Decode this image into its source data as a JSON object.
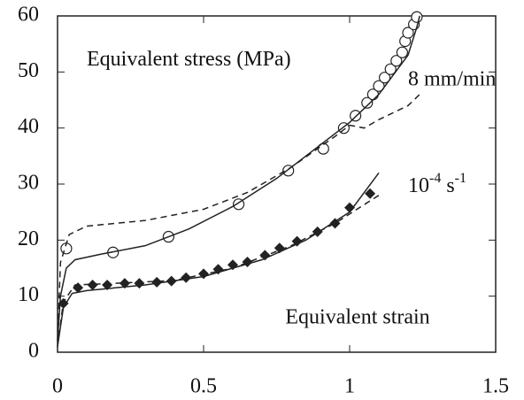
{
  "chart_data": {
    "type": "line",
    "annotations": [
      {
        "text": "Equivalent stress (MPa)",
        "x": 0.1,
        "y": 52
      },
      {
        "text": "8 mm/min",
        "x": 1.2,
        "y": 48.5
      },
      {
        "parts": [
          "10",
          "-4",
          " s",
          "-1"
        ],
        "x": 1.2,
        "y": 29.5
      },
      {
        "text": "Equivalent strain",
        "x": 0.78,
        "y": 6
      }
    ],
    "xlim": [
      0,
      1.5
    ],
    "xticks": [
      0,
      0.5,
      1,
      1.5
    ],
    "ylim": [
      0,
      60
    ],
    "yticks": [
      0,
      10,
      20,
      30,
      40,
      50,
      60
    ],
    "series": [
      {
        "style": "open-circle",
        "color": "#222222",
        "x": [
          0.03,
          0.19,
          0.38,
          0.62,
          0.79,
          0.91,
          0.98,
          1.02,
          1.06,
          1.08,
          1.1,
          1.12,
          1.14,
          1.16,
          1.18,
          1.19,
          1.2,
          1.22,
          1.23
        ],
        "values": [
          18.5,
          17.8,
          20.6,
          26.4,
          32.4,
          36.3,
          40,
          42.2,
          44.5,
          46,
          47.5,
          49,
          50.5,
          52,
          53.5,
          55.5,
          57,
          58.5,
          59.8
        ]
      },
      {
        "style": "filled-diamond",
        "color": "#222222",
        "x": [
          0.02,
          0.07,
          0.12,
          0.17,
          0.23,
          0.28,
          0.34,
          0.39,
          0.44,
          0.5,
          0.55,
          0.6,
          0.65,
          0.71,
          0.76,
          0.82,
          0.89,
          0.95,
          1.0,
          1.07
        ],
        "values": [
          8.7,
          11.5,
          12,
          12,
          12.3,
          12.3,
          12.5,
          12.7,
          13.3,
          14,
          14.8,
          15.6,
          16.1,
          17.3,
          18.6,
          19.8,
          21.5,
          23,
          25.8,
          28.3
        ]
      },
      {
        "style": "solid",
        "color": "#222222",
        "x": [
          0,
          0.01,
          0.03,
          0.06,
          0.15,
          0.3,
          0.45,
          0.6,
          0.75,
          0.9,
          1.0,
          1.1,
          1.2,
          1.23,
          1.24
        ],
        "values": [
          2,
          10,
          15,
          16.5,
          17.5,
          19,
          22,
          26,
          31,
          37,
          41,
          46,
          53,
          58,
          60
        ]
      },
      {
        "style": "dashed",
        "color": "#222222",
        "x": [
          0,
          0.01,
          0.04,
          0.1,
          0.3,
          0.5,
          0.65,
          0.8,
          0.95,
          1.0,
          1.05,
          1.1,
          1.2,
          1.24
        ],
        "values": [
          2,
          16,
          21,
          22.5,
          23.5,
          25.5,
          28.5,
          33,
          38.5,
          40.5,
          40,
          41.5,
          44,
          46
        ]
      },
      {
        "style": "solid",
        "color": "#222222",
        "x": [
          0,
          0.02,
          0.05,
          0.1,
          0.3,
          0.5,
          0.7,
          0.85,
          1.0,
          1.1
        ],
        "values": [
          1,
          8,
          10.5,
          11,
          12,
          13.5,
          16.5,
          20,
          25,
          32
        ]
      },
      {
        "style": "dashed",
        "color": "#222222",
        "x": [
          0,
          0.02,
          0.06,
          0.2,
          0.4,
          0.6,
          0.8,
          0.95,
          1.1
        ],
        "values": [
          1,
          9,
          12,
          12.3,
          12.8,
          15,
          19,
          23,
          28
        ]
      }
    ]
  }
}
